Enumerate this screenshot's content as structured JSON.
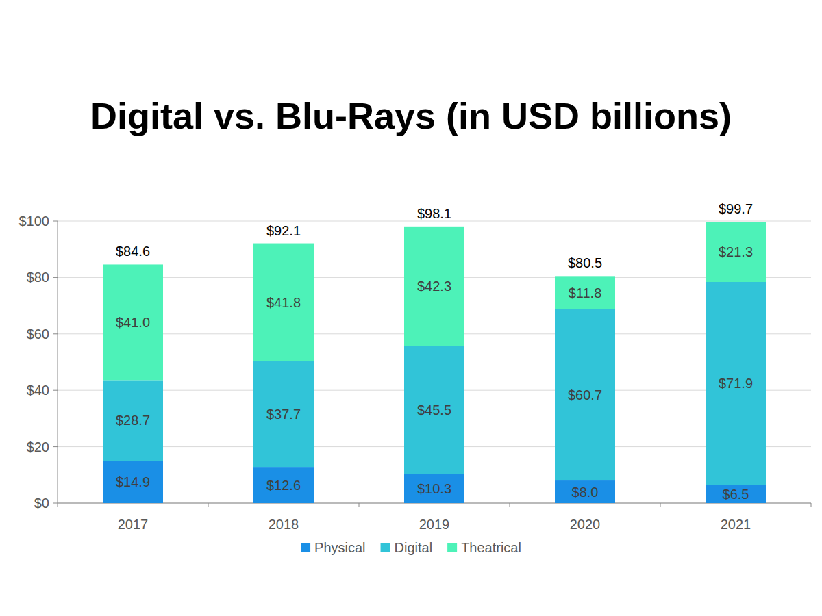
{
  "chart_data": {
    "type": "bar",
    "title": "Digital vs. Blu-Rays (in USD billions)",
    "categories": [
      "2017",
      "2018",
      "2019",
      "2020",
      "2021"
    ],
    "series": [
      {
        "name": "Physical",
        "color": "#1a8fe6",
        "values": [
          14.9,
          12.6,
          10.3,
          8.0,
          6.5
        ],
        "value_labels": [
          "$14.9",
          "$12.6",
          "$10.3",
          "$8.0",
          "$6.5"
        ]
      },
      {
        "name": "Digital",
        "color": "#31c4d8",
        "values": [
          28.7,
          37.7,
          45.5,
          60.7,
          71.9
        ],
        "value_labels": [
          "$28.7",
          "$37.7",
          "$45.5",
          "$60.7",
          "$71.9"
        ]
      },
      {
        "name": "Theatrical",
        "color": "#4df2b8",
        "values": [
          41.0,
          41.8,
          42.3,
          11.8,
          21.3
        ],
        "value_labels": [
          "$41.0",
          "$41.8",
          "$42.3",
          "$11.8",
          "$21.3"
        ]
      }
    ],
    "totals": [
      84.6,
      92.1,
      98.1,
      80.5,
      99.7
    ],
    "total_labels": [
      "$84.6",
      "$92.1",
      "$98.1",
      "$80.5",
      "$99.7"
    ],
    "ylim": [
      0,
      100
    ],
    "yticks": [
      {
        "value": 0,
        "label": "$0"
      },
      {
        "value": 20,
        "label": "$20"
      },
      {
        "value": 40,
        "label": "$40"
      },
      {
        "value": 60,
        "label": "$60"
      },
      {
        "value": 80,
        "label": "$80"
      },
      {
        "value": 100,
        "label": "$100"
      }
    ],
    "grid": true,
    "stacked": true,
    "data_labels": true,
    "legend": "bottom"
  }
}
